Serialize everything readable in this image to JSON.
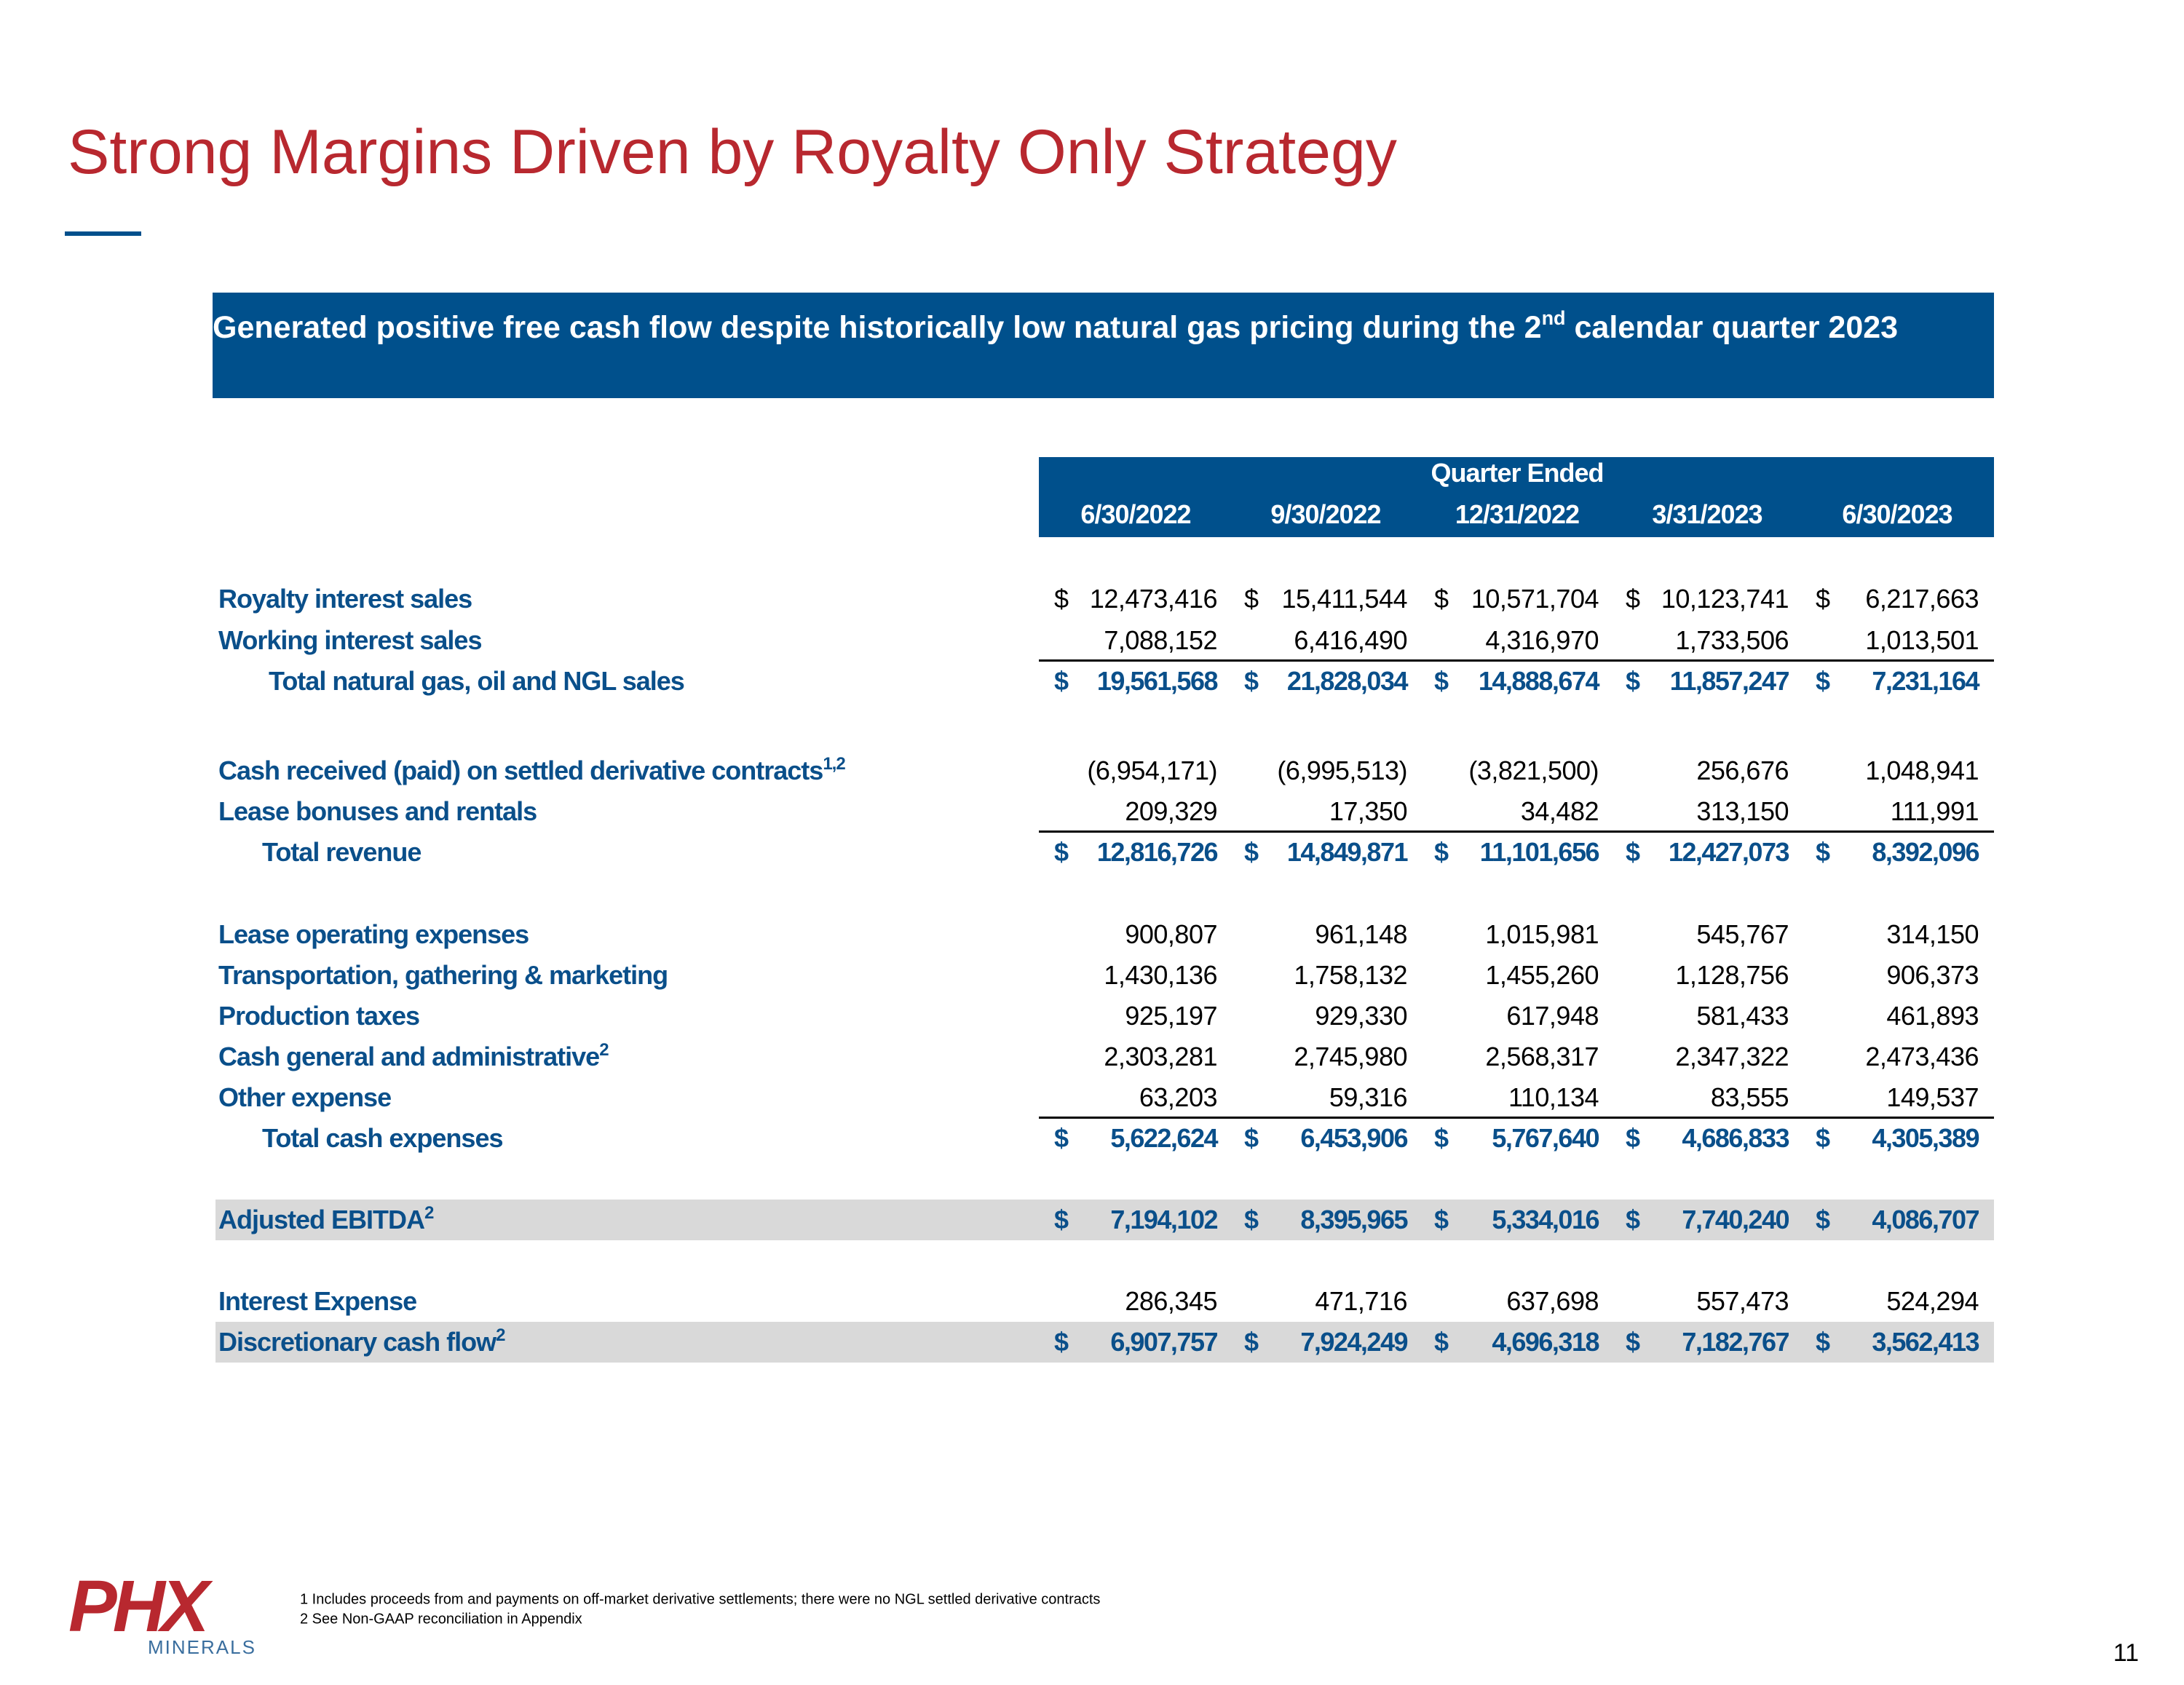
{
  "title": "Strong Margins Driven by Royalty Only Strategy",
  "banner": {
    "text": "Generated positive free cash flow despite historically low natural gas pricing during the 2",
    "sup": "nd",
    "text_after": " calendar quarter 2023"
  },
  "table": {
    "header": "Quarter Ended",
    "columns": [
      "6/30/2022",
      "9/30/2022",
      "12/31/2022",
      "3/31/2023",
      "6/30/2023"
    ],
    "rows": [
      {
        "label": "Royalty interest sales",
        "symbol": "$",
        "cells": [
          "12,473,416",
          "15,411,544",
          "10,571,704",
          "10,123,741",
          "6,217,663"
        ]
      },
      {
        "label": "Working interest sales",
        "cells": [
          "7,088,152",
          "6,416,490",
          "4,316,970",
          "1,733,506",
          "1,013,501"
        ]
      },
      {
        "label": "Total natural gas, oil and NGL sales",
        "symbol": "$",
        "style": "total",
        "cells": [
          "19,561,568",
          "21,828,034",
          "14,888,674",
          "11,857,247",
          "7,231,164"
        ]
      },
      {
        "label": "Cash received (paid) on settled derivative contracts",
        "sup": "1,2",
        "cells": [
          "(6,954,171)",
          "(6,995,513)",
          "(3,821,500)",
          "256,676",
          "1,048,941"
        ]
      },
      {
        "label": "Lease bonuses and rentals",
        "cells": [
          "209,329",
          "17,350",
          "34,482",
          "313,150",
          "111,991"
        ]
      },
      {
        "label": "Total revenue",
        "symbol": "$",
        "style": "total",
        "cells": [
          "12,816,726",
          "14,849,871",
          "11,101,656",
          "12,427,073",
          "8,392,096"
        ]
      },
      {
        "label": "Lease operating expenses",
        "cells": [
          "900,807",
          "961,148",
          "1,015,981",
          "545,767",
          "314,150"
        ]
      },
      {
        "label": "Transportation, gathering & marketing",
        "cells": [
          "1,430,136",
          "1,758,132",
          "1,455,260",
          "1,128,756",
          "906,373"
        ]
      },
      {
        "label": "Production taxes",
        "cells": [
          "925,197",
          "929,330",
          "617,948",
          "581,433",
          "461,893"
        ]
      },
      {
        "label": "Cash general and administrative",
        "sup": "2",
        "cells": [
          "2,303,281",
          "2,745,980",
          "2,568,317",
          "2,347,322",
          "2,473,436"
        ]
      },
      {
        "label": "Other expense",
        "cells": [
          "63,203",
          "59,316",
          "110,134",
          "83,555",
          "149,537"
        ]
      },
      {
        "label": "Total cash expenses",
        "symbol": "$",
        "style": "total",
        "cells": [
          "5,622,624",
          "6,453,906",
          "5,767,640",
          "4,686,833",
          "4,305,389"
        ]
      },
      {
        "label": "Adjusted EBITDA",
        "sup": "2",
        "symbol": "$",
        "style": "highlight",
        "cells": [
          "7,194,102",
          "8,395,965",
          "5,334,016",
          "7,740,240",
          "4,086,707"
        ]
      },
      {
        "label": "Interest Expense",
        "cells": [
          "286,345",
          "471,716",
          "637,698",
          "557,473",
          "524,294"
        ]
      },
      {
        "label": "Discretionary cash flow",
        "sup": "2",
        "symbol": "$",
        "style": "highlight",
        "cells": [
          "6,907,757",
          "7,924,249",
          "4,696,318",
          "7,182,767",
          "3,562,413"
        ]
      }
    ]
  },
  "footnotes": [
    "1  Includes proceeds from and payments on off-market derivative settlements; there were no NGL settled derivative contracts",
    "2 See Non-GAAP reconciliation in Appendix"
  ],
  "logo": {
    "mark": "PHX",
    "name": "MINERALS"
  },
  "page_number": "11"
}
